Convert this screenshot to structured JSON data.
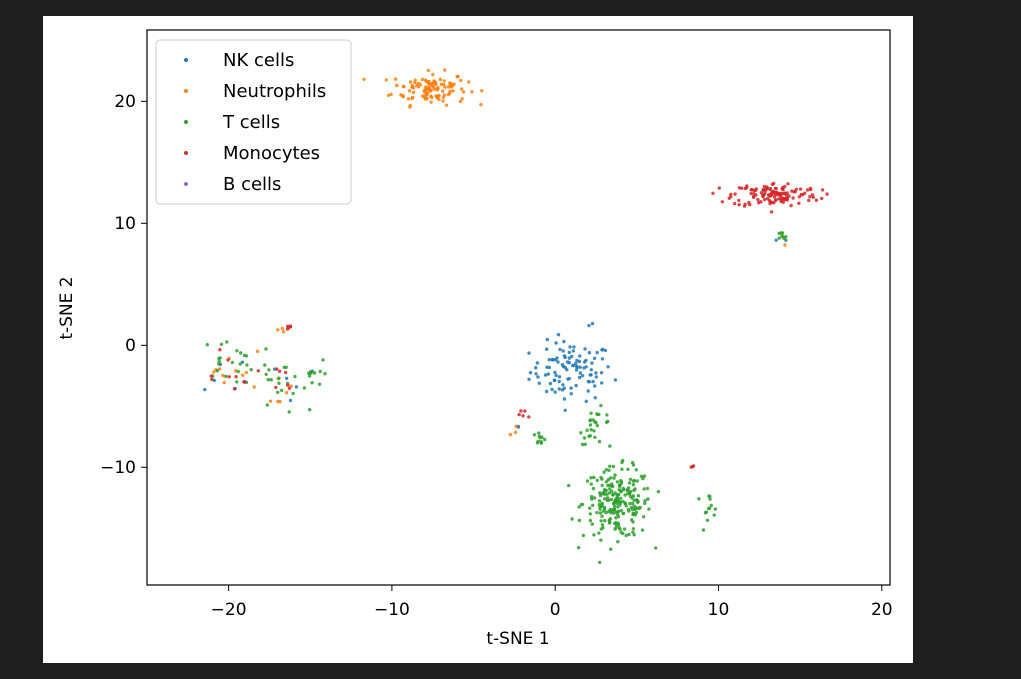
{
  "chart_data": {
    "type": "scatter",
    "title": "",
    "xlabel": "t-SNE 1",
    "ylabel": "t-SNE 2",
    "xlim": [
      -25,
      20.5
    ],
    "ylim": [
      -19.5,
      26
    ],
    "xticks": [
      -20,
      -10,
      0,
      10,
      20
    ],
    "yticks": [
      -10,
      0,
      10,
      20
    ],
    "xtick_labels": [
      "−20",
      "−10",
      "0",
      "10",
      "20"
    ],
    "ytick_labels": [
      "−10",
      "0",
      "10",
      "20"
    ],
    "grid": false,
    "legend_position": "top-left",
    "point_counts": {
      "nk": 120,
      "neutrophils": 140,
      "t": 330,
      "monocytes": 160,
      "b": 0
    },
    "series": [
      {
        "key": "nk",
        "name": "NK cells",
        "color": "#1f77b4",
        "clusters": [
          {
            "center": [
              1.0,
              -2.0
            ],
            "spread": [
              2.3,
              2.2
            ]
          },
          {
            "center": [
              -20.0,
              -2.0
            ],
            "spread": [
              1.4,
              1.8
            ]
          },
          {
            "center": [
              -16.0,
              -3.0
            ],
            "spread": [
              1.4,
              2.0
            ]
          },
          {
            "center": [
              13.5,
              8.8
            ],
            "spread": [
              0.6,
              0.3
            ]
          },
          {
            "center": [
              2.5,
              2.0
            ],
            "spread": [
              0.5,
              0.3
            ]
          },
          {
            "center": [
              -2.5,
              -6.5
            ],
            "spread": [
              0.6,
              0.3
            ]
          }
        ],
        "weights": [
          0.85,
          0.05,
          0.04,
          0.02,
          0.02,
          0.02
        ]
      },
      {
        "key": "neutrophils",
        "name": "Neutrophils",
        "color": "#ff7f0e",
        "clusters": [
          {
            "center": [
              -7.7,
              21.2
            ],
            "spread": [
              2.1,
              1.2
            ]
          },
          {
            "center": [
              -19.8,
              -1.5
            ],
            "spread": [
              1.4,
              1.2
            ]
          },
          {
            "center": [
              -17.0,
              -3.5
            ],
            "spread": [
              0.9,
              1.8
            ]
          },
          {
            "center": [
              -16.5,
              1.5
            ],
            "spread": [
              0.6,
              0.3
            ]
          },
          {
            "center": [
              14.0,
              8.5
            ],
            "spread": [
              0.3,
              0.6
            ]
          },
          {
            "center": [
              -2.2,
              -7.0
            ],
            "spread": [
              0.5,
              0.8
            ]
          }
        ],
        "weights": [
          0.82,
          0.07,
          0.05,
          0.02,
          0.02,
          0.02
        ]
      },
      {
        "key": "t",
        "name": "T cells",
        "color": "#2ca02c",
        "clusters": [
          {
            "center": [
              3.8,
              -12.8
            ],
            "spread": [
              1.9,
              2.6
            ]
          },
          {
            "center": [
              2.5,
              -6.5
            ],
            "spread": [
              0.9,
              1.3
            ]
          },
          {
            "center": [
              9.3,
              -13.0
            ],
            "spread": [
              0.7,
              0.9
            ]
          },
          {
            "center": [
              -17.0,
              -3.0
            ],
            "spread": [
              1.5,
              2.3
            ]
          },
          {
            "center": [
              -20.0,
              -1.0
            ],
            "spread": [
              1.5,
              1.5
            ]
          },
          {
            "center": [
              -15.0,
              -2.5
            ],
            "spread": [
              0.7,
              1.3
            ]
          },
          {
            "center": [
              -1.0,
              -7.5
            ],
            "spread": [
              0.5,
              0.6
            ]
          },
          {
            "center": [
              13.8,
              9.0
            ],
            "spread": [
              0.4,
              0.4
            ]
          }
        ],
        "weights": [
          0.68,
          0.08,
          0.04,
          0.06,
          0.06,
          0.03,
          0.03,
          0.02
        ]
      },
      {
        "key": "monocytes",
        "name": "Monocytes",
        "color": "#d62728",
        "clusters": [
          {
            "center": [
              13.5,
              12.5
            ],
            "spread": [
              2.4,
              0.9
            ]
          },
          {
            "center": [
              -20.0,
              -1.5
            ],
            "spread": [
              1.8,
              1.8
            ]
          },
          {
            "center": [
              -17.0,
              -3.0
            ],
            "spread": [
              0.9,
              2.0
            ]
          },
          {
            "center": [
              -16.5,
              1.6
            ],
            "spread": [
              0.5,
              0.2
            ]
          },
          {
            "center": [
              8.5,
              -9.8
            ],
            "spread": [
              0.3,
              0.1
            ]
          },
          {
            "center": [
              -2.0,
              -5.5
            ],
            "spread": [
              0.6,
              0.7
            ]
          }
        ],
        "weights": [
          0.82,
          0.06,
          0.04,
          0.03,
          0.02,
          0.03
        ]
      },
      {
        "key": "b",
        "name": "B cells",
        "color": "#9467bd",
        "clusters": [],
        "weights": []
      }
    ]
  }
}
